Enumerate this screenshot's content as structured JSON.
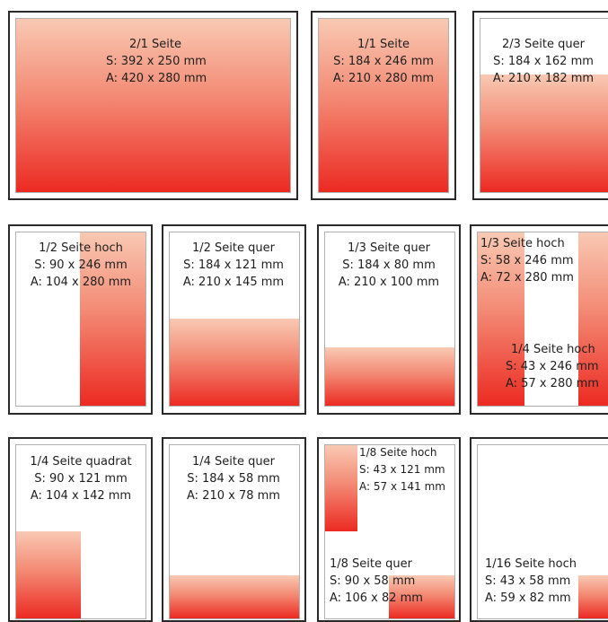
{
  "formats": {
    "doppel": {
      "title": "2/1 Seite",
      "satz": "S: 392 x 250 mm",
      "anschnitt": "A: 420 x 280 mm"
    },
    "ganz": {
      "title": "1/1 Seite",
      "satz": "S: 184 x 246 mm",
      "anschnitt": "A: 210 x 280 mm"
    },
    "zweidrittel_quer": {
      "title": "2/3 Seite quer",
      "satz": "S: 184 x 162 mm",
      "anschnitt": "A: 210 x 182 mm"
    },
    "halb_hoch": {
      "title": "1/2 Seite hoch",
      "satz": "S: 90 x 246 mm",
      "anschnitt": "A: 104 x 280 mm"
    },
    "halb_quer": {
      "title": "1/2 Seite  quer",
      "satz": "S: 184 x 121 mm",
      "anschnitt": "A: 210 x 145 mm"
    },
    "drittel_quer": {
      "title": "1/3 Seite quer",
      "satz": "S: 184 x 80 mm",
      "anschnitt": "A: 210 x 100 mm"
    },
    "drittel_hoch": {
      "title": "1/3 Seite hoch",
      "satz": "S: 58 x 246 mm",
      "anschnitt": "A: 72 x 280 mm"
    },
    "viertel_hoch": {
      "title": "1/4 Seite hoch",
      "satz": "S: 43 x 246 mm",
      "anschnitt": "A: 57 x 280 mm"
    },
    "viertel_quadrat": {
      "title": "1/4 Seite quadrat",
      "satz": "S: 90 x 121 mm",
      "anschnitt": "A: 104 x 142 mm"
    },
    "viertel_quer": {
      "title": "1/4 Seite quer",
      "satz": "S: 184 x 58 mm",
      "anschnitt": "A: 210 x 78 mm"
    },
    "achtel_hoch": {
      "title": "1/8 Seite hoch",
      "satz": "S: 43 x 121 mm",
      "anschnitt": "A: 57 x 141 mm"
    },
    "achtel_quer": {
      "title": "1/8 Seite quer",
      "satz": "S: 90 x 58 mm",
      "anschnitt": "A: 106 x 82 mm"
    },
    "sechzehntel_hoch": {
      "title": "1/16 Seite hoch",
      "satz": "S: 43 x 58 mm",
      "anschnitt": "A: 59 x 82 mm"
    }
  },
  "colors": {
    "fill_top": "#f9c9b3",
    "fill_bottom": "#ec2a22",
    "frame": "#2a2a2a",
    "page_border": "#b0b0b0"
  }
}
